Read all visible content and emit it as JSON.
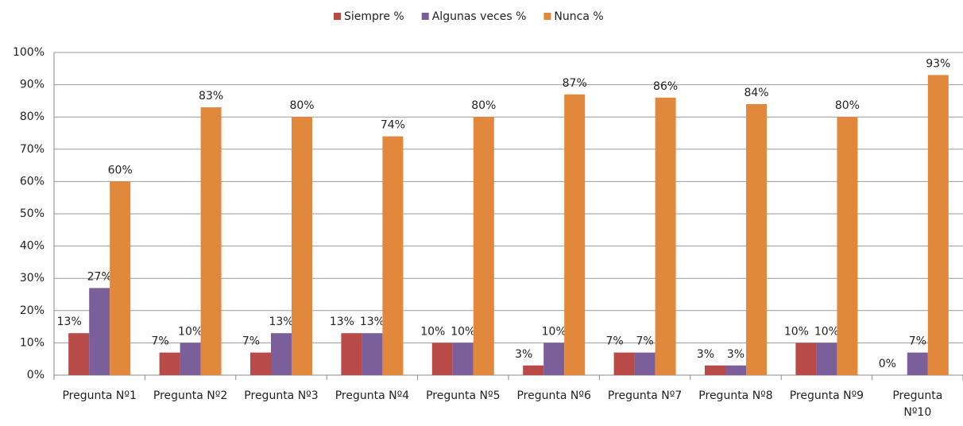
{
  "chart_data": {
    "type": "bar",
    "categories": [
      "Pregunta Nº1",
      "Pregunta Nº2",
      "Pregunta Nº3",
      "Pregunta Nº4",
      "Pregunta Nº5",
      "Pregunta Nº6",
      "Pregunta Nº7",
      "Pregunta Nº8",
      "Pregunta Nº9",
      "Pregunta Nº10"
    ],
    "series": [
      {
        "name": "Siempre %",
        "color": "#b84a48",
        "values": [
          13,
          7,
          7,
          13,
          10,
          3,
          7,
          3,
          10,
          0
        ],
        "value_labels": [
          "13%",
          "7%",
          "7%",
          "13%",
          "10%",
          "3%",
          "7%",
          "3%",
          "10%",
          "0%"
        ]
      },
      {
        "name": "Algunas veces %",
        "color": "#7b5f9a",
        "values": [
          27,
          10,
          13,
          13,
          10,
          10,
          7,
          3,
          10,
          7
        ],
        "value_labels": [
          "27%",
          "10%",
          "13%",
          "13%",
          "10%",
          "10%",
          "7%",
          "3%",
          "10%",
          "7%"
        ]
      },
      {
        "name": "Nunca %",
        "color": "#e2883c",
        "values": [
          60,
          83,
          80,
          74,
          80,
          87,
          86,
          84,
          80,
          93
        ],
        "value_labels": [
          "60%",
          "83%",
          "80%",
          "74%",
          "80%",
          "87%",
          "86%",
          "84%",
          "80%",
          "93%"
        ]
      }
    ],
    "ylim": [
      0,
      100
    ],
    "yticks": [
      {
        "value": 0,
        "label": "0%"
      },
      {
        "value": 10,
        "label": "10%"
      },
      {
        "value": 20,
        "label": "20%"
      },
      {
        "value": 30,
        "label": "30%"
      },
      {
        "value": 40,
        "label": "40%"
      },
      {
        "value": 50,
        "label": "50%"
      },
      {
        "value": 60,
        "label": "60%"
      },
      {
        "value": 70,
        "label": "70%"
      },
      {
        "value": 80,
        "label": "80%"
      },
      {
        "value": 90,
        "label": "90%"
      },
      {
        "value": 100,
        "label": "100%"
      }
    ],
    "grid": true,
    "legend": "top"
  }
}
